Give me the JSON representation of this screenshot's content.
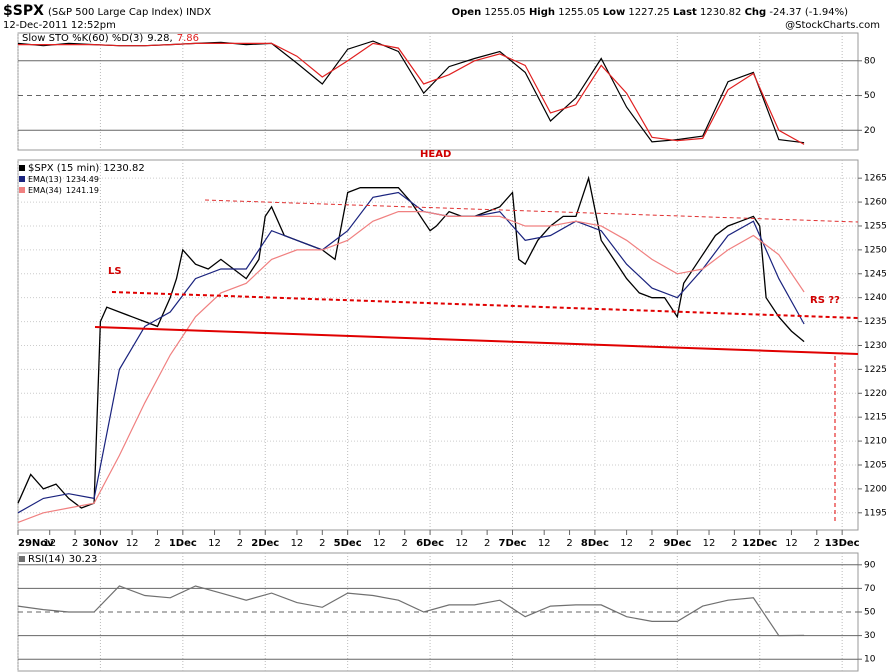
{
  "header": {
    "symbol": "$SPX",
    "name": "(S&P 500 Large Cap Index) INDX",
    "date": "12-Dec-2011 12:52pm",
    "credit": "@StockCharts.com",
    "open_label": "Open",
    "open": 1255.05,
    "high_label": "High",
    "high": 1255.05,
    "low_label": "Low",
    "low": 1227.25,
    "last_label": "Last",
    "last": 1230.82,
    "change_label": "Chg",
    "change": -24.37,
    "change_percent": {
      "value": -1.94,
      "label": "(-1.94%)"
    }
  },
  "chart_data": [
    {
      "type": "line",
      "title": "Slow STO %K(60) %D(3)",
      "ylim": [
        3,
        104
      ],
      "yticks": [
        20,
        50,
        80
      ],
      "xlim": [
        0,
        265
      ],
      "series": [
        {
          "name": "%K",
          "color": "#000000",
          "last_label": "9.28,",
          "x": [
            0,
            8,
            16,
            24,
            32,
            40,
            48,
            56,
            64,
            72,
            80,
            88,
            96,
            104,
            112,
            120,
            128,
            136,
            144,
            152,
            160,
            168,
            176,
            184,
            192,
            200,
            208,
            216,
            224,
            232,
            240,
            248
          ],
          "values": [
            95,
            93,
            95,
            94,
            93,
            93,
            94,
            95,
            96,
            94,
            95,
            78,
            60,
            90,
            97,
            88,
            52,
            75,
            82,
            88,
            70,
            28,
            48,
            82,
            40,
            10,
            12,
            15,
            62,
            70,
            12,
            9.28
          ]
        },
        {
          "name": "%D",
          "color": "#e02020",
          "last_label": "7.86",
          "x": [
            0,
            8,
            16,
            24,
            32,
            40,
            48,
            56,
            64,
            72,
            80,
            88,
            96,
            104,
            112,
            120,
            128,
            136,
            144,
            152,
            160,
            168,
            176,
            184,
            192,
            200,
            208,
            216,
            224,
            232,
            240,
            248
          ],
          "values": [
            94,
            94,
            94,
            94,
            93,
            93,
            94,
            95,
            95,
            95,
            95,
            84,
            66,
            80,
            95,
            91,
            60,
            68,
            80,
            86,
            76,
            35,
            42,
            76,
            52,
            14,
            11,
            13,
            55,
            69,
            20,
            7.86
          ]
        }
      ]
    },
    {
      "type": "line",
      "ylim": [
        1191.4,
        1268.8
      ],
      "xlim": [
        0,
        265
      ],
      "grid": true,
      "yticks": [
        1195,
        1200,
        1205,
        1210,
        1215,
        1220,
        1225,
        1230,
        1235,
        1240,
        1245,
        1250,
        1255,
        1260,
        1265
      ],
      "xticks": [
        {
          "value": 0,
          "label": "29Nov"
        },
        {
          "value": 10,
          "label": "12"
        },
        {
          "value": 18,
          "label": "2"
        },
        {
          "value": 26,
          "label": "30Nov"
        },
        {
          "value": 36,
          "label": "12"
        },
        {
          "value": 44,
          "label": "2"
        },
        {
          "value": 52,
          "label": "1Dec"
        },
        {
          "value": 62,
          "label": "12"
        },
        {
          "value": 70,
          "label": "2"
        },
        {
          "value": 78,
          "label": "2Dec"
        },
        {
          "value": 88,
          "label": "12"
        },
        {
          "value": 96,
          "label": "2"
        },
        {
          "value": 104,
          "label": "5Dec"
        },
        {
          "value": 114,
          "label": "12"
        },
        {
          "value": 122,
          "label": "2"
        },
        {
          "value": 130,
          "label": "6Dec"
        },
        {
          "value": 140,
          "label": "12"
        },
        {
          "value": 148,
          "label": "2"
        },
        {
          "value": 156,
          "label": "7Dec"
        },
        {
          "value": 166,
          "label": "12"
        },
        {
          "value": 174,
          "label": "2"
        },
        {
          "value": 182,
          "label": "8Dec"
        },
        {
          "value": 192,
          "label": "12"
        },
        {
          "value": 200,
          "label": "2"
        },
        {
          "value": 208,
          "label": "9Dec"
        },
        {
          "value": 218,
          "label": "12"
        },
        {
          "value": 226,
          "label": "2"
        },
        {
          "value": 234,
          "label": "12Dec"
        },
        {
          "value": 244,
          "label": "12"
        },
        {
          "value": 252,
          "label": "2"
        },
        {
          "value": 260,
          "label": "13Dec"
        }
      ],
      "annotations": [
        "HEAD",
        "LS",
        "RS ??"
      ],
      "series": [
        {
          "name": "$SPX (15 min)",
          "color": "#000000",
          "x": [
            0,
            4,
            8,
            12,
            16,
            20,
            24,
            26,
            28,
            32,
            36,
            40,
            44,
            48,
            50,
            52,
            56,
            60,
            64,
            68,
            72,
            76,
            78,
            80,
            84,
            88,
            92,
            96,
            100,
            104,
            108,
            112,
            116,
            120,
            124,
            128,
            130,
            132,
            136,
            140,
            144,
            148,
            152,
            156,
            158,
            160,
            164,
            168,
            172,
            176,
            180,
            184,
            188,
            192,
            196,
            200,
            204,
            208,
            210,
            212,
            216,
            220,
            224,
            228,
            232,
            234,
            236,
            240,
            244,
            248
          ],
          "values": [
            1197,
            1203,
            1200,
            1201,
            1198,
            1196,
            1197,
            1235,
            1238,
            1237,
            1236,
            1235,
            1234,
            1240,
            1244,
            1250,
            1247,
            1246,
            1248,
            1246,
            1244,
            1248,
            1257,
            1259,
            1253,
            1252,
            1251,
            1250,
            1248,
            1262,
            1263,
            1263,
            1263,
            1263,
            1260,
            1256,
            1254,
            1255,
            1258,
            1257,
            1257,
            1258,
            1259,
            1262,
            1248,
            1247,
            1252,
            1255,
            1257,
            1257,
            1265,
            1252,
            1248,
            1244,
            1241,
            1240,
            1240,
            1236,
            1243,
            1245,
            1249,
            1253,
            1255,
            1256,
            1257,
            1255,
            1240,
            1236,
            1233,
            1230.82
          ]
        },
        {
          "name": "EMA(13)",
          "color": "#1a237e",
          "x": [
            0,
            8,
            16,
            24,
            32,
            40,
            48,
            56,
            64,
            72,
            80,
            88,
            96,
            104,
            112,
            120,
            128,
            136,
            144,
            152,
            160,
            168,
            176,
            184,
            192,
            200,
            208,
            216,
            224,
            232,
            240,
            248
          ],
          "values": [
            1195,
            1198,
            1199,
            1198,
            1225,
            1234,
            1237,
            1244,
            1246,
            1246,
            1254,
            1252,
            1250,
            1254,
            1261,
            1262,
            1258,
            1257,
            1257,
            1258,
            1252,
            1253,
            1256,
            1254,
            1247,
            1242,
            1240,
            1246,
            1253,
            1256,
            1244,
            1234.49
          ]
        },
        {
          "name": "EMA(34)",
          "color": "#f08080",
          "x": [
            0,
            8,
            16,
            24,
            32,
            40,
            48,
            56,
            64,
            72,
            80,
            88,
            96,
            104,
            112,
            120,
            128,
            136,
            144,
            152,
            160,
            168,
            176,
            184,
            192,
            200,
            208,
            216,
            224,
            232,
            240,
            248
          ],
          "values": [
            1193,
            1195,
            1196,
            1197,
            1207,
            1218,
            1228,
            1236,
            1241,
            1243,
            1248,
            1250,
            1250,
            1252,
            1256,
            1258,
            1258,
            1257,
            1257,
            1257,
            1255,
            1255,
            1256,
            1255,
            1252,
            1248,
            1245,
            1246,
            1250,
            1253,
            1249,
            1241.19
          ]
        }
      ]
    },
    {
      "type": "line",
      "ylim": [
        0,
        100
      ],
      "yticks": [
        10,
        30,
        50,
        70,
        90
      ],
      "xlim": [
        0,
        265
      ],
      "series": [
        {
          "name": "RSI(14)",
          "color": "#707070",
          "x": [
            0,
            8,
            16,
            24,
            32,
            40,
            48,
            56,
            64,
            72,
            80,
            88,
            96,
            104,
            112,
            120,
            128,
            136,
            144,
            152,
            160,
            168,
            176,
            184,
            192,
            200,
            208,
            216,
            224,
            232,
            240,
            248
          ],
          "values": [
            55,
            52,
            50,
            50,
            72,
            64,
            62,
            72,
            66,
            60,
            66,
            58,
            54,
            66,
            64,
            60,
            50,
            56,
            56,
            60,
            46,
            55,
            56,
            56,
            46,
            42,
            42,
            55,
            60,
            62,
            30,
            30.23
          ]
        }
      ]
    }
  ]
}
